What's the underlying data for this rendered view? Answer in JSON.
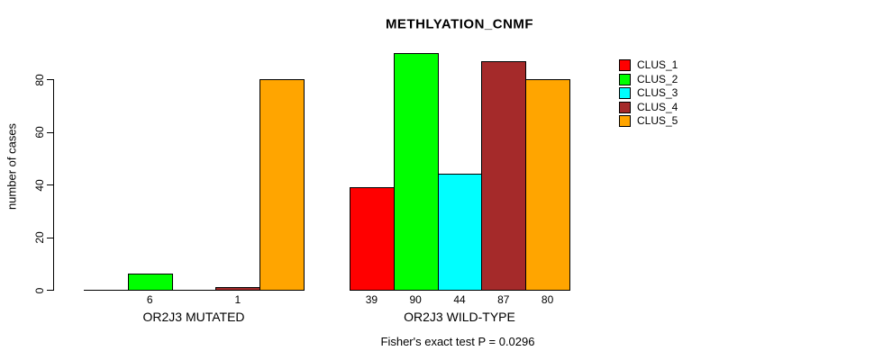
{
  "chart_data": {
    "type": "bar",
    "title": "METHLYATION_CNMF",
    "ylabel": "number of cases",
    "xlabel": "",
    "groups": [
      "OR2J3 MUTATED",
      "OR2J3 WILD-TYPE"
    ],
    "series": [
      {
        "name": "CLUS_1",
        "color": "#FF0000",
        "values": [
          0,
          39
        ]
      },
      {
        "name": "CLUS_2",
        "color": "#00FF00",
        "values": [
          6,
          90
        ]
      },
      {
        "name": "CLUS_3",
        "color": "#00FFFF",
        "values": [
          0,
          44
        ]
      },
      {
        "name": "CLUS_4",
        "color": "#A52A2A",
        "values": [
          1,
          87
        ]
      },
      {
        "name": "CLUS_5",
        "color": "#FFA500",
        "values": [
          80,
          80
        ]
      }
    ],
    "bar_value_labels": [
      [
        "",
        "6",
        "",
        "1",
        ""
      ],
      [
        "39",
        "90",
        "44",
        "87",
        "80"
      ]
    ],
    "yticks": [
      0,
      20,
      40,
      60,
      80
    ],
    "ylim": [
      0,
      90
    ],
    "grid": false,
    "legend_position": "top-right",
    "annotation": "Fisher's exact test P = 0.0296"
  }
}
